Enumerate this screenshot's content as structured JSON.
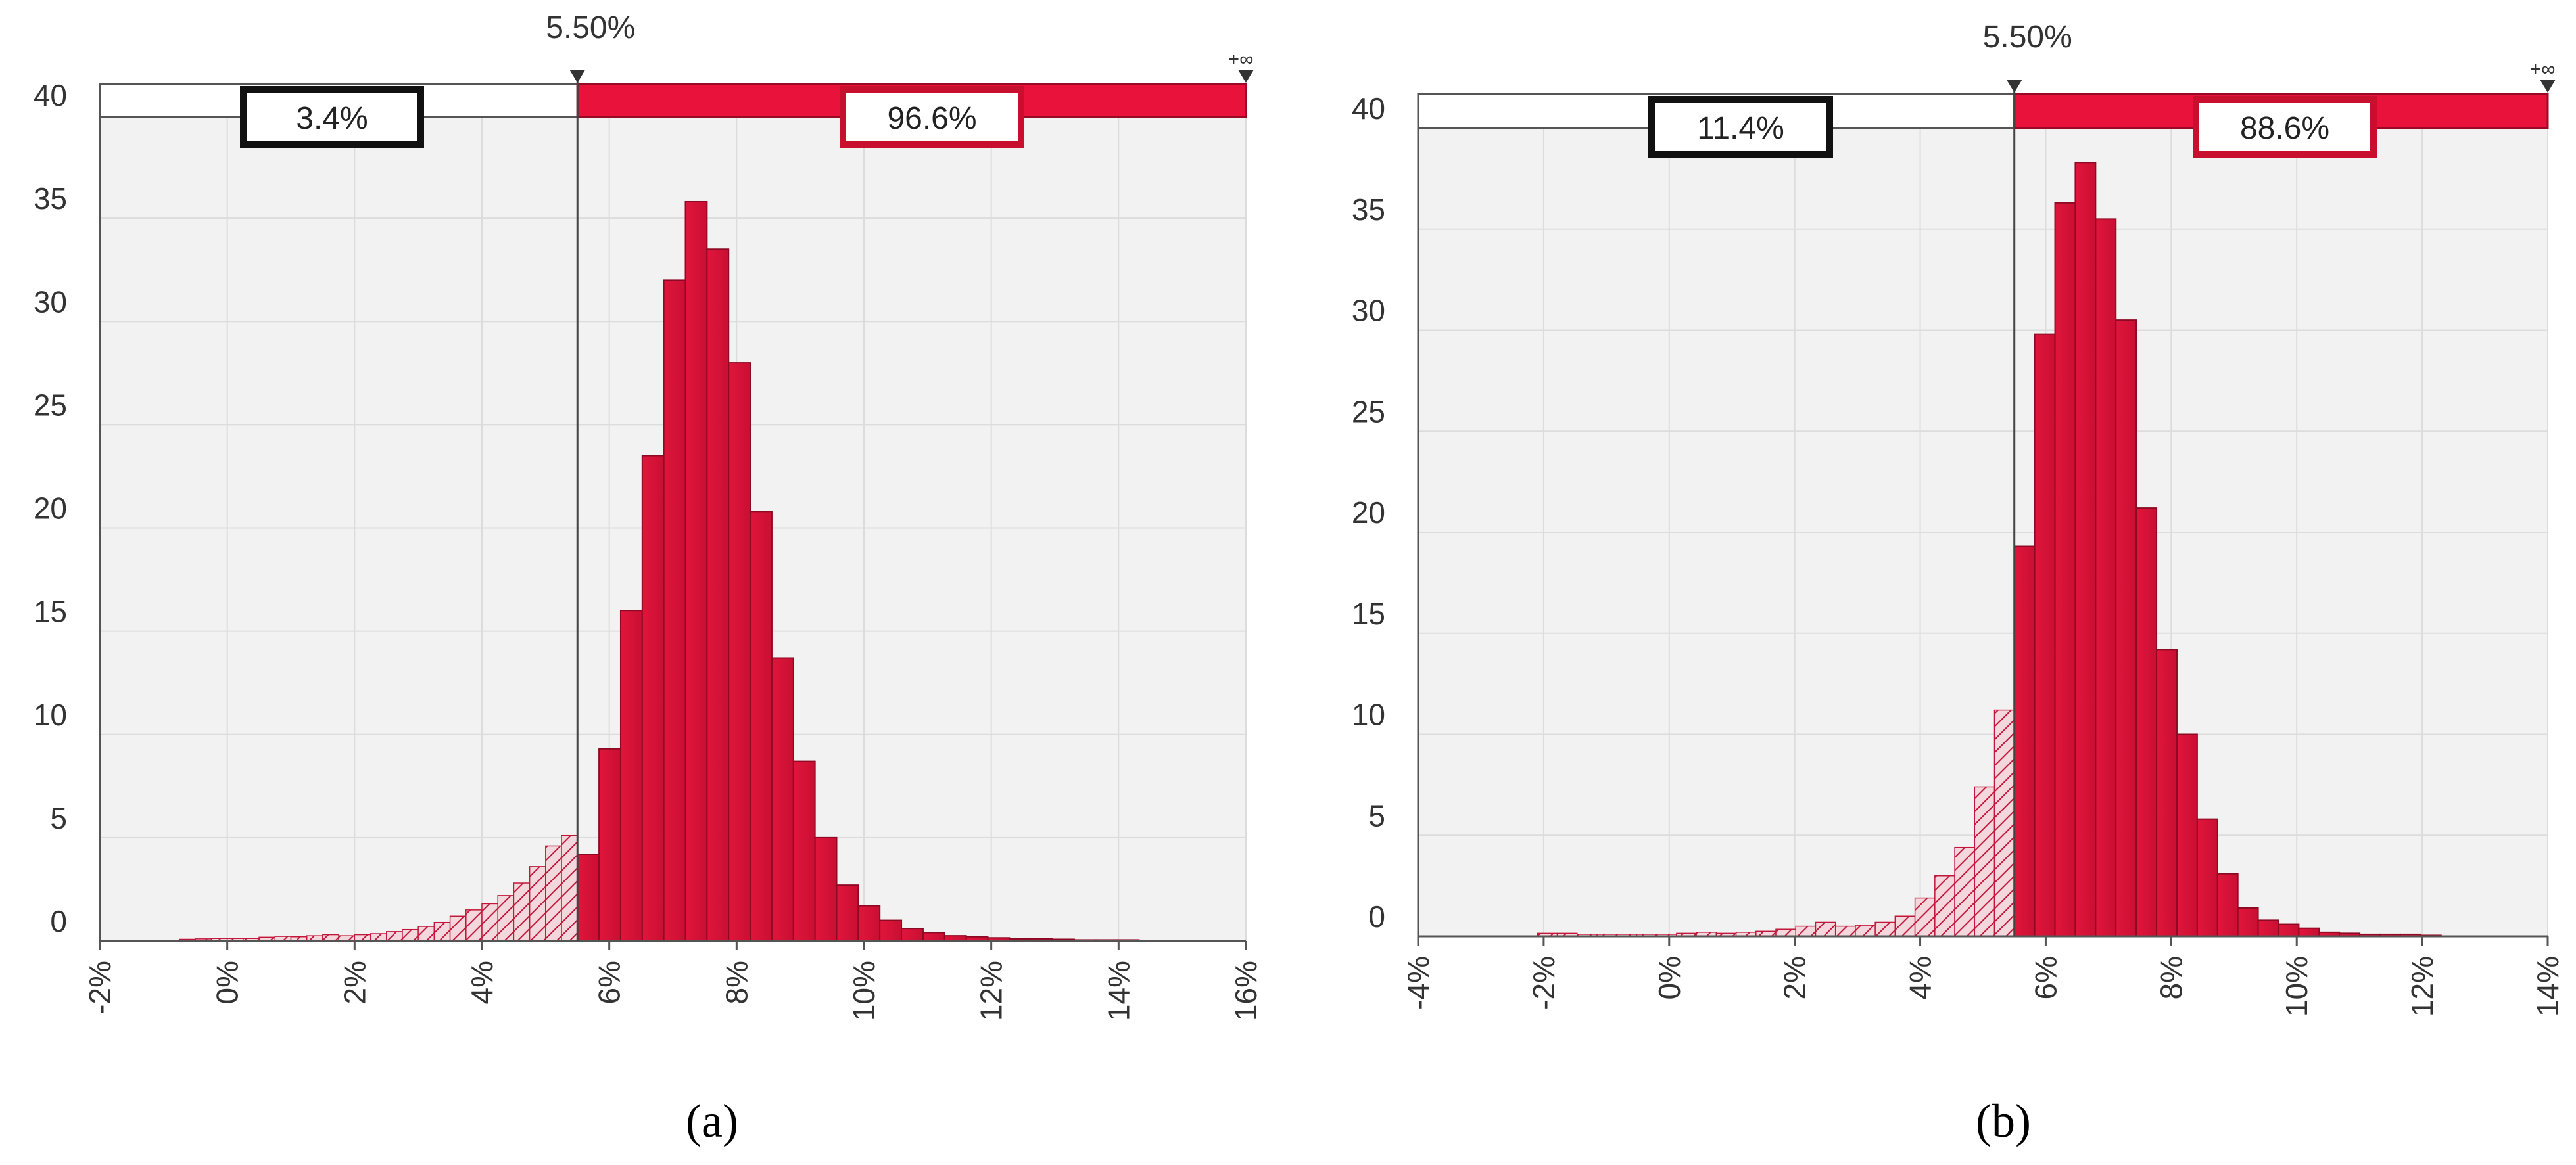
{
  "chart_data": [
    {
      "type": "histogram",
      "panel_label": "(a)",
      "xlim": [
        -2,
        16
      ],
      "x_ticks": [
        -2,
        0,
        2,
        4,
        6,
        8,
        10,
        12,
        14,
        16
      ],
      "x_tick_labels": [
        "-2%",
        "0%",
        "2%",
        "4%",
        "6%",
        "8%",
        "10%",
        "12%",
        "14%",
        "16%"
      ],
      "ylim": [
        0,
        40
      ],
      "y_ticks": [
        0,
        5,
        10,
        15,
        20,
        25,
        30,
        35,
        40
      ],
      "y_tick_labels": [
        "0",
        "5",
        "10",
        "15",
        "20",
        "25",
        "30",
        "35",
        "40"
      ],
      "grid": true,
      "threshold": {
        "value": 5.5,
        "label": "5.50%"
      },
      "right_end_label": "+∞",
      "left_percent": "3.4%",
      "right_percent": "96.6%",
      "bins": [
        {
          "x0": -0.75,
          "x1": 5.5,
          "values": [
            0.08,
            0.1,
            0.12,
            0.12,
            0.12,
            0.18,
            0.22,
            0.2,
            0.25,
            0.3,
            0.25,
            0.3,
            0.35,
            0.45,
            0.55,
            0.7,
            0.9,
            1.2,
            1.5,
            1.8,
            2.2,
            2.8,
            3.6,
            4.6,
            5.1
          ]
        },
        {
          "x0": 5.5,
          "x1": 15.0,
          "values": [
            4.2,
            9.3,
            16.0,
            23.5,
            32.0,
            35.8,
            33.5,
            28.0,
            20.8,
            13.7,
            8.7,
            5.0,
            2.7,
            1.7,
            1.0,
            0.6,
            0.4,
            0.25,
            0.2,
            0.15,
            0.1,
            0.1,
            0.08,
            0.05,
            0.05,
            0.05,
            0.03,
            0.03
          ]
        }
      ]
    },
    {
      "type": "histogram",
      "panel_label": "(b)",
      "xlim": [
        -4,
        14
      ],
      "x_ticks": [
        -4,
        -2,
        0,
        2,
        4,
        6,
        8,
        10,
        12,
        14
      ],
      "x_tick_labels": [
        "-4%",
        "-2%",
        "0%",
        "2%",
        "4%",
        "6%",
        "8%",
        "10%",
        "12%",
        "14%"
      ],
      "ylim": [
        0,
        40
      ],
      "y_ticks": [
        0,
        5,
        10,
        15,
        20,
        25,
        30,
        35,
        40
      ],
      "y_tick_labels": [
        "0",
        "5",
        "10",
        "15",
        "20",
        "25",
        "30",
        "35",
        "40"
      ],
      "grid": true,
      "threshold": {
        "value": 5.5,
        "label": "5.50%"
      },
      "right_end_label": "+∞",
      "left_percent": "11.4%",
      "right_percent": "88.6%",
      "bins": [
        {
          "x0": -2.1,
          "x1": 5.5,
          "values": [
            0.15,
            0.15,
            0.1,
            0.1,
            0.1,
            0.1,
            0.1,
            0.15,
            0.2,
            0.15,
            0.2,
            0.25,
            0.35,
            0.5,
            0.7,
            0.5,
            0.55,
            0.7,
            1.0,
            1.9,
            3.0,
            4.4,
            7.4,
            11.2
          ]
        },
        {
          "x0": 5.5,
          "x1": 12.3,
          "values": [
            19.3,
            29.8,
            36.3,
            38.3,
            35.5,
            30.5,
            21.2,
            14.2,
            10.0,
            5.8,
            3.1,
            1.4,
            0.8,
            0.6,
            0.4,
            0.2,
            0.15,
            0.1,
            0.1,
            0.1,
            0.05
          ]
        }
      ]
    }
  ]
}
